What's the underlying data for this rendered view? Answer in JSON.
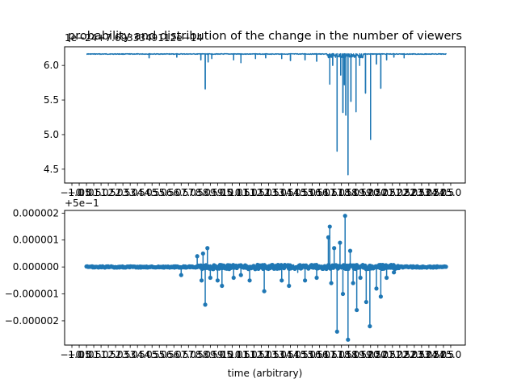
{
  "chart_data": [
    {
      "type": "line",
      "title": "probability and distribution of the change in the number of viewers",
      "xlabel": "",
      "ylabel": "",
      "offset_text": "1e−24+7.6933349112e−14",
      "xlim": [
        -1.5,
        26.0
      ],
      "ylim": [
        4.3,
        6.27
      ],
      "grid": false,
      "legend": "none",
      "color": "#1f77b4",
      "marker": "none",
      "x_tick_labels": [
        "−1.0",
        "−0.5",
        "0.0",
        "0.5",
        "1.0",
        "1.5",
        "2.0",
        "2.5",
        "3.0",
        "3.5",
        "4.0",
        "4.5",
        "5.0",
        "5.5",
        "6.0",
        "6.5",
        "7.0",
        "7.5",
        "8.0",
        "8.5",
        "9.0",
        "9.5",
        "10.0",
        "10.5",
        "11.0",
        "11.5",
        "12.0",
        "12.5",
        "13.0",
        "13.5",
        "14.0",
        "14.5",
        "15.0",
        "15.5",
        "16.0",
        "16.5",
        "17.0",
        "17.5",
        "18.0",
        "18.5",
        "19.0",
        "19.5",
        "20.0",
        "20.5",
        "21.0",
        "21.5",
        "22.0",
        "22.5",
        "23.0",
        "23.5",
        "24.0",
        "24.5",
        "25.0"
      ],
      "y_ticks": [
        4.5,
        5.0,
        5.5,
        6.0
      ],
      "y_tick_labels": [
        "4.5",
        "5.0",
        "5.5",
        "6.0"
      ],
      "baseline": 6.17,
      "x_range": [
        0.0,
        24.7
      ],
      "dips": [
        [
          8.15,
          5.66
        ],
        [
          7.85,
          6.08
        ],
        [
          8.35,
          6.05
        ],
        [
          8.6,
          6.1
        ],
        [
          4.3,
          6.11
        ],
        [
          6.2,
          6.12
        ],
        [
          10.1,
          6.08
        ],
        [
          10.6,
          6.04
        ],
        [
          11.6,
          6.1
        ],
        [
          12.3,
          6.11
        ],
        [
          13.4,
          6.1
        ],
        [
          14.0,
          6.07
        ],
        [
          15.0,
          6.08
        ],
        [
          15.8,
          6.06
        ],
        [
          16.7,
          5.73
        ],
        [
          16.9,
          6.0
        ],
        [
          17.2,
          4.76
        ],
        [
          17.45,
          5.86
        ],
        [
          17.6,
          5.32
        ],
        [
          17.7,
          5.72
        ],
        [
          17.8,
          5.28
        ],
        [
          17.95,
          4.42
        ],
        [
          18.15,
          5.48
        ],
        [
          18.5,
          5.33
        ],
        [
          18.75,
          6.0
        ],
        [
          19.15,
          5.6
        ],
        [
          19.5,
          4.93
        ],
        [
          19.9,
          6.02
        ],
        [
          20.2,
          5.67
        ],
        [
          20.6,
          6.08
        ],
        [
          21.1,
          6.12
        ],
        [
          21.8,
          6.11
        ]
      ]
    },
    {
      "type": "line",
      "title": "",
      "xlabel": "time (arbitrary)",
      "ylabel": "",
      "offset_text": "+5e−1",
      "xlim": [
        -1.5,
        26.0
      ],
      "ylim": [
        -2.9e-06,
        2.1e-06
      ],
      "grid": false,
      "legend": "none",
      "color": "#1f77b4",
      "marker": "circle",
      "x_tick_labels": [
        "−1.0",
        "−0.5",
        "0.0",
        "0.5",
        "1.0",
        "1.5",
        "2.0",
        "2.5",
        "3.0",
        "3.5",
        "4.0",
        "4.5",
        "5.0",
        "5.5",
        "6.0",
        "6.5",
        "7.0",
        "7.5",
        "8.0",
        "8.5",
        "9.0",
        "9.5",
        "10.0",
        "10.5",
        "11.0",
        "11.5",
        "12.0",
        "12.5",
        "13.0",
        "13.5",
        "14.0",
        "14.5",
        "15.0",
        "15.5",
        "16.0",
        "16.5",
        "17.0",
        "17.5",
        "18.0",
        "18.5",
        "19.0",
        "19.5",
        "20.0",
        "20.5",
        "21.0",
        "21.5",
        "22.0",
        "22.5",
        "23.0",
        "23.5",
        "24.0",
        "24.5",
        "25.0"
      ],
      "y_ticks": [
        -2e-06,
        -1e-06,
        0.0,
        1e-06,
        2e-06
      ],
      "y_tick_labels": [
        "−0.000002",
        "−0.000001",
        "0.000000",
        "0.000001",
        "0.000002"
      ],
      "baseline": 0.0,
      "x_range": [
        0.0,
        24.7
      ],
      "spikes": [
        [
          6.5,
          -3e-07
        ],
        [
          7.6,
          4e-07
        ],
        [
          7.9,
          -5e-07
        ],
        [
          8.0,
          5e-07
        ],
        [
          8.15,
          -1.4e-06
        ],
        [
          8.3,
          7e-07
        ],
        [
          8.5,
          -4e-07
        ],
        [
          9.0,
          -5e-07
        ],
        [
          9.3,
          -7e-07
        ],
        [
          10.1,
          -4e-07
        ],
        [
          10.6,
          -3e-07
        ],
        [
          11.2,
          -5e-07
        ],
        [
          12.2,
          -9e-07
        ],
        [
          13.4,
          -5e-07
        ],
        [
          13.9,
          -7e-07
        ],
        [
          14.5,
          -2e-07
        ],
        [
          15.0,
          -5e-07
        ],
        [
          15.8,
          -4e-07
        ],
        [
          16.6,
          1.1e-06
        ],
        [
          16.7,
          1.5e-06
        ],
        [
          16.8,
          -6e-07
        ],
        [
          17.0,
          7e-07
        ],
        [
          17.2,
          -2.4e-06
        ],
        [
          17.4,
          9e-07
        ],
        [
          17.6,
          -1e-06
        ],
        [
          17.75,
          1.9e-06
        ],
        [
          17.95,
          -2.7e-06
        ],
        [
          18.1,
          6e-07
        ],
        [
          18.3,
          -6e-07
        ],
        [
          18.55,
          -1.6e-06
        ],
        [
          18.8,
          -4e-07
        ],
        [
          19.2,
          -1.3e-06
        ],
        [
          19.45,
          -2.2e-06
        ],
        [
          19.9,
          -8e-07
        ],
        [
          20.2,
          -1.1e-06
        ],
        [
          20.6,
          -4e-07
        ],
        [
          21.1,
          -2e-07
        ]
      ]
    }
  ]
}
